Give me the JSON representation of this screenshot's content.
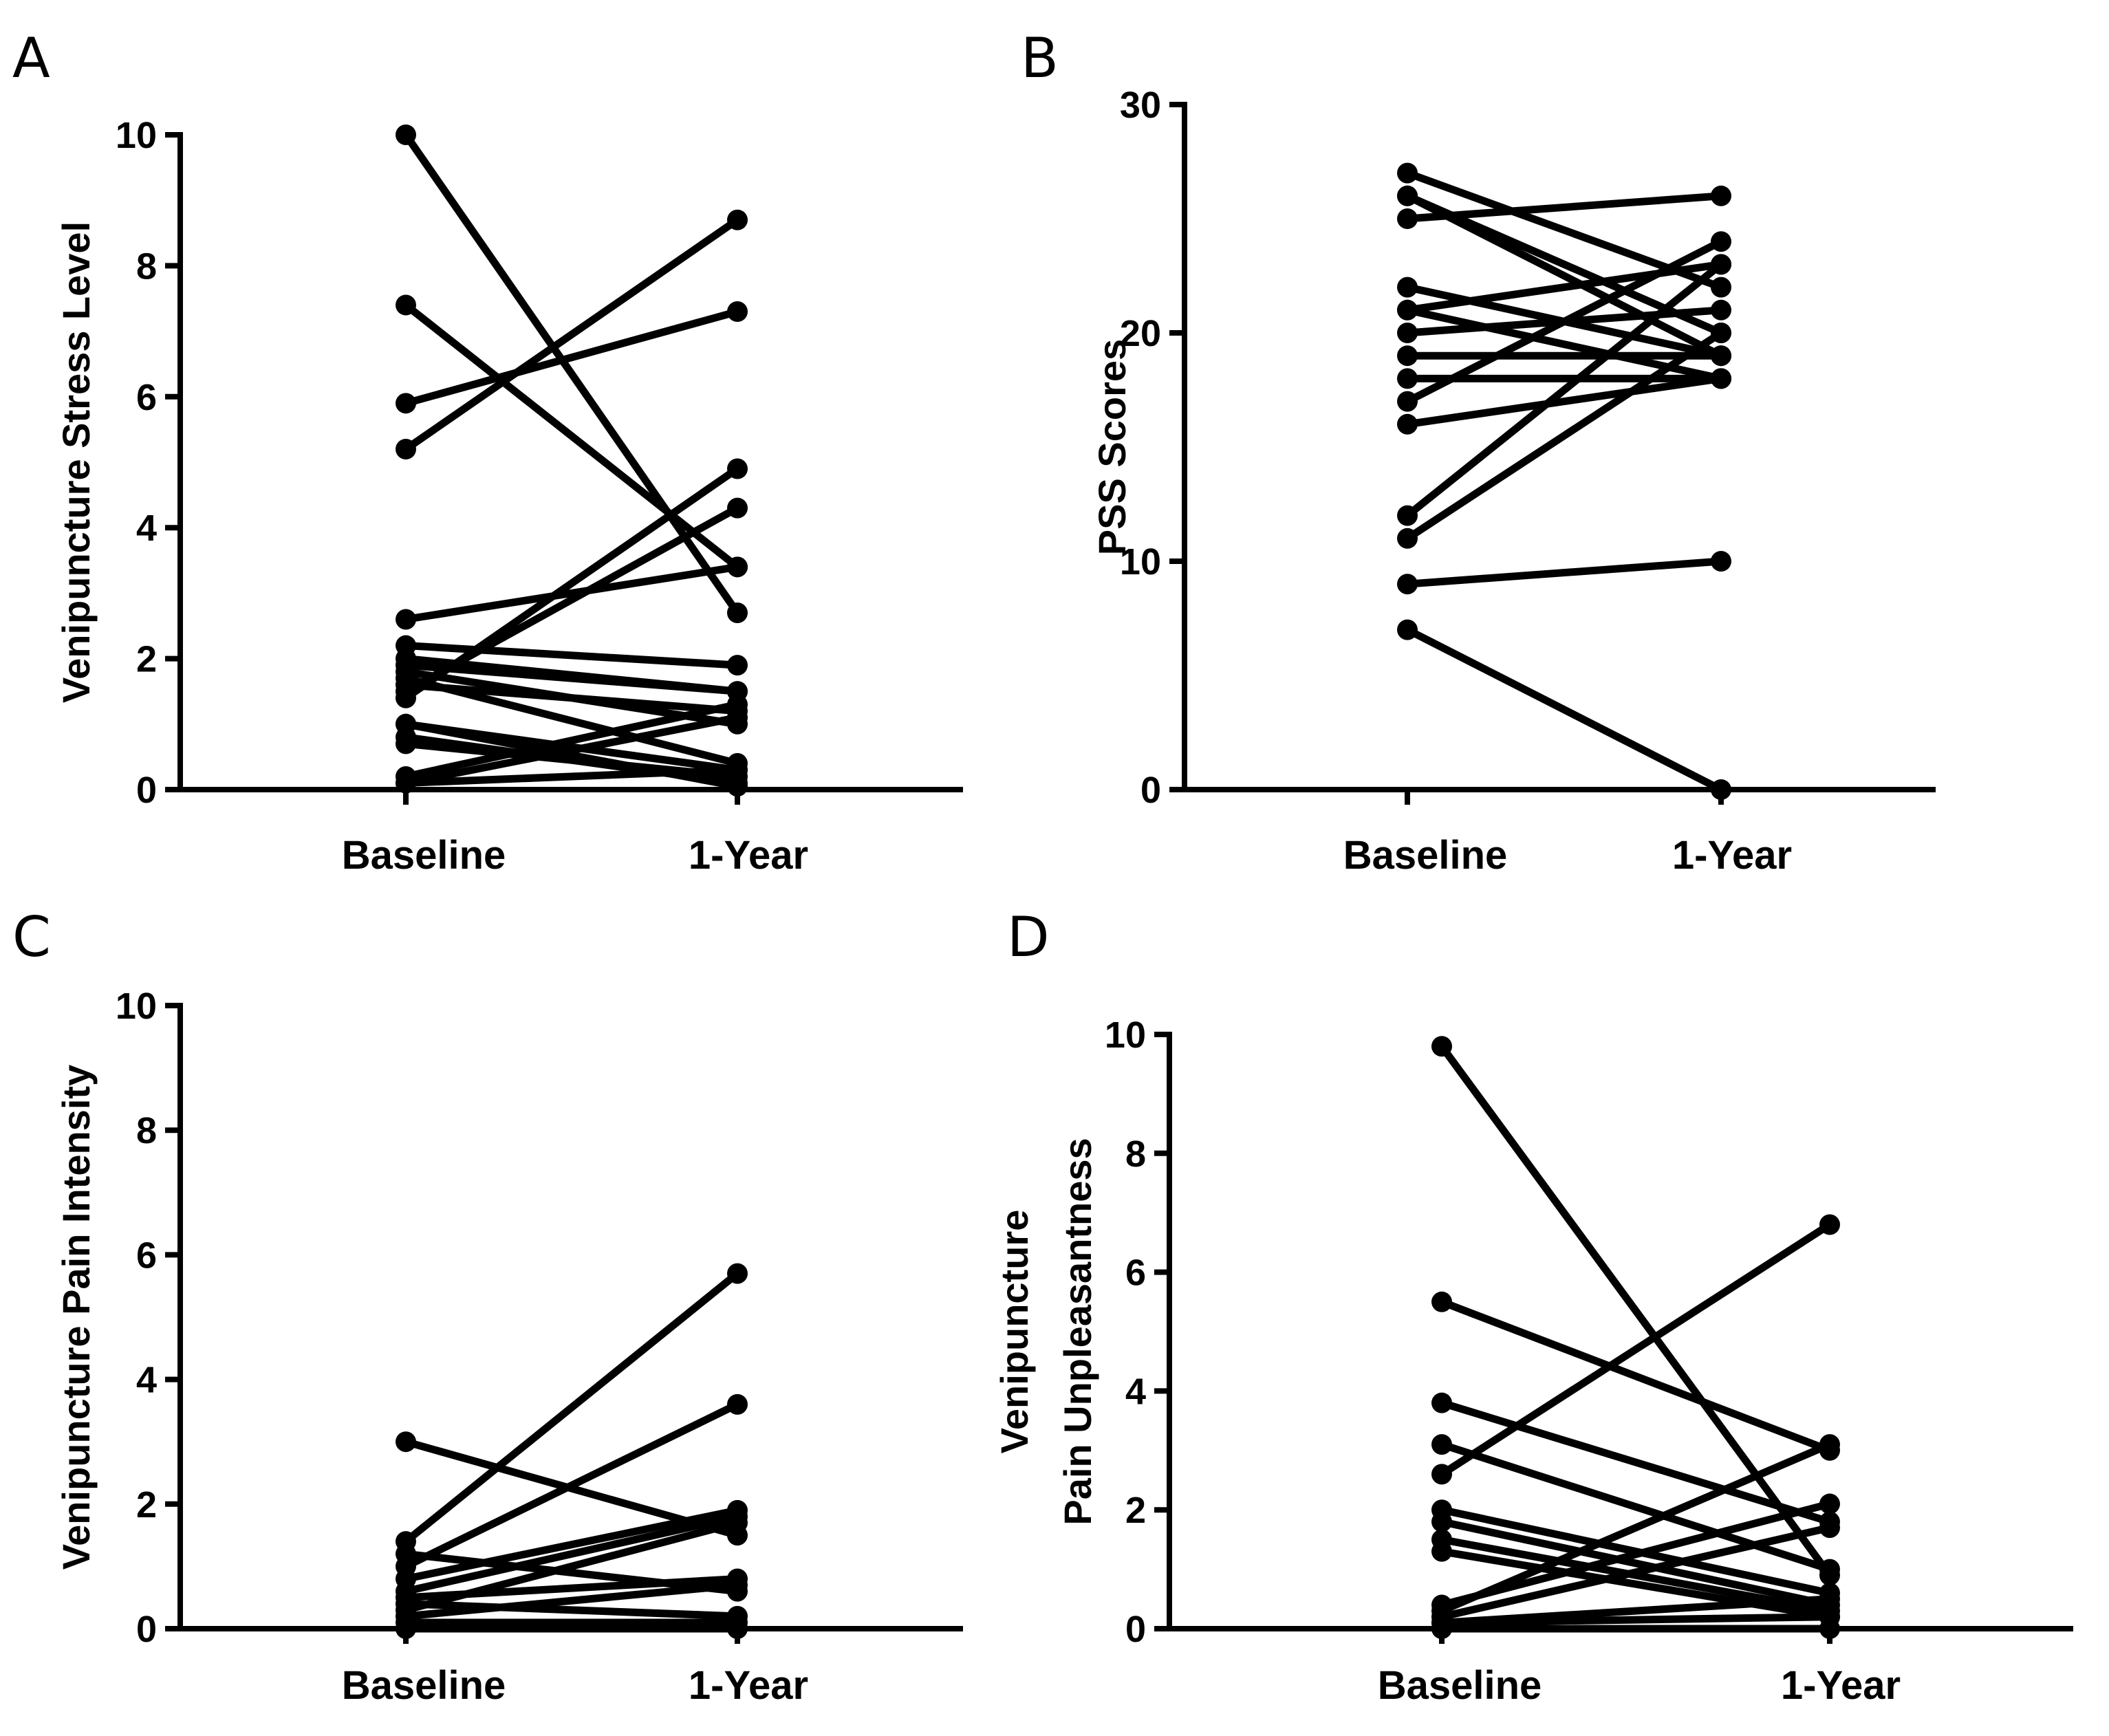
{
  "chart_data": [
    {
      "panel": "A",
      "type": "line",
      "categories": [
        "Baseline",
        "1-Year"
      ],
      "ylabel": [
        "Venipuncture Stress Level"
      ],
      "ylim": [
        0,
        10
      ],
      "yticks": [
        0,
        2,
        4,
        6,
        8,
        10
      ],
      "yticklabels": [
        "0",
        "2",
        "4",
        "6",
        "8",
        "10"
      ],
      "series": [
        {
          "values": [
            10,
            2.7
          ]
        },
        {
          "values": [
            7.4,
            3.4
          ]
        },
        {
          "values": [
            5.9,
            7.3
          ]
        },
        {
          "values": [
            5.2,
            8.7
          ]
        },
        {
          "values": [
            2.6,
            3.4
          ]
        },
        {
          "values": [
            2.2,
            1.9
          ]
        },
        {
          "values": [
            2.0,
            1.5
          ]
        },
        {
          "values": [
            1.9,
            1.5
          ]
        },
        {
          "values": [
            1.8,
            1.0
          ]
        },
        {
          "values": [
            1.7,
            0.4
          ]
        },
        {
          "values": [
            1.6,
            1.2
          ]
        },
        {
          "values": [
            1.4,
            4.9
          ]
        },
        {
          "values": [
            1.0,
            0.3
          ]
        },
        {
          "values": [
            0.8,
            0.1
          ]
        },
        {
          "values": [
            0.7,
            0.2
          ]
        },
        {
          "values": [
            0.2,
            1.3
          ]
        },
        {
          "values": [
            0.1,
            1.1
          ]
        },
        {
          "values": [
            0.1,
            0.3
          ]
        },
        {
          "values": [
            1.5,
            4.3
          ]
        },
        {
          "values": [
            1.0,
            0.05
          ]
        }
      ]
    },
    {
      "panel": "B",
      "type": "line",
      "categories": [
        "Baseline",
        "1-Year"
      ],
      "ylabel": [
        "PSS Scores"
      ],
      "ylim": [
        0,
        30
      ],
      "yticks": [
        0,
        10,
        20,
        30
      ],
      "yticklabels": [
        "0",
        "10",
        "20",
        "30"
      ],
      "series": [
        {
          "values": [
            27,
            22
          ]
        },
        {
          "values": [
            26,
            20
          ]
        },
        {
          "values": [
            25,
            26
          ]
        },
        {
          "values": [
            22,
            19
          ]
        },
        {
          "values": [
            21,
            23
          ]
        },
        {
          "values": [
            20,
            21
          ]
        },
        {
          "values": [
            19,
            19
          ]
        },
        {
          "values": [
            18,
            18
          ]
        },
        {
          "values": [
            17,
            24
          ]
        },
        {
          "values": [
            16,
            18
          ]
        },
        {
          "values": [
            12,
            23
          ]
        },
        {
          "values": [
            11,
            20
          ]
        },
        {
          "values": [
            9,
            10
          ]
        },
        {
          "values": [
            7,
            0
          ]
        },
        {
          "values": [
            26,
            19
          ]
        },
        {
          "values": [
            21,
            18
          ]
        }
      ]
    },
    {
      "panel": "C",
      "type": "line",
      "categories": [
        "Baseline",
        "1-Year"
      ],
      "ylabel": [
        "Venipuncture Pain Intensity"
      ],
      "ylim": [
        0,
        10
      ],
      "yticks": [
        0,
        2,
        4,
        6,
        8,
        10
      ],
      "yticklabels": [
        "0",
        "2",
        "4",
        "6",
        "8",
        "10"
      ],
      "series": [
        {
          "values": [
            3.0,
            1.5
          ]
        },
        {
          "values": [
            1.4,
            5.7
          ]
        },
        {
          "values": [
            1.2,
            0.6
          ]
        },
        {
          "values": [
            1.0,
            3.6
          ]
        },
        {
          "values": [
            0.8,
            1.9
          ]
        },
        {
          "values": [
            0.6,
            1.8
          ]
        },
        {
          "values": [
            0.5,
            0.8
          ]
        },
        {
          "values": [
            0.4,
            0.2
          ]
        },
        {
          "values": [
            0.3,
            1.7
          ]
        },
        {
          "values": [
            0.2,
            0.7
          ]
        },
        {
          "values": [
            0.1,
            0.1
          ]
        },
        {
          "values": [
            0.0,
            0.0
          ]
        }
      ]
    },
    {
      "panel": "D",
      "type": "line",
      "categories": [
        "Baseline",
        "1-Year"
      ],
      "ylabel": [
        "Venipuncture",
        "Pain Unpleasantness"
      ],
      "ylim": [
        0,
        10
      ],
      "yticks": [
        0,
        2,
        4,
        6,
        8,
        10
      ],
      "yticklabels": [
        "0",
        "2",
        "4",
        "6",
        "8",
        "10"
      ],
      "series": [
        {
          "values": [
            9.8,
            0.9
          ]
        },
        {
          "values": [
            5.5,
            3.0
          ]
        },
        {
          "values": [
            3.8,
            1.8
          ]
        },
        {
          "values": [
            3.1,
            1.0
          ]
        },
        {
          "values": [
            2.6,
            6.8
          ]
        },
        {
          "values": [
            2.0,
            0.6
          ]
        },
        {
          "values": [
            1.8,
            0.4
          ]
        },
        {
          "values": [
            1.5,
            0.3
          ]
        },
        {
          "values": [
            1.3,
            0.2
          ]
        },
        {
          "values": [
            0.4,
            2.1
          ]
        },
        {
          "values": [
            0.3,
            3.1
          ]
        },
        {
          "values": [
            0.2,
            1.7
          ]
        },
        {
          "values": [
            0.1,
            0.5
          ]
        },
        {
          "values": [
            0.0,
            0.0
          ]
        },
        {
          "values": [
            0.1,
            0.2
          ]
        }
      ]
    }
  ]
}
